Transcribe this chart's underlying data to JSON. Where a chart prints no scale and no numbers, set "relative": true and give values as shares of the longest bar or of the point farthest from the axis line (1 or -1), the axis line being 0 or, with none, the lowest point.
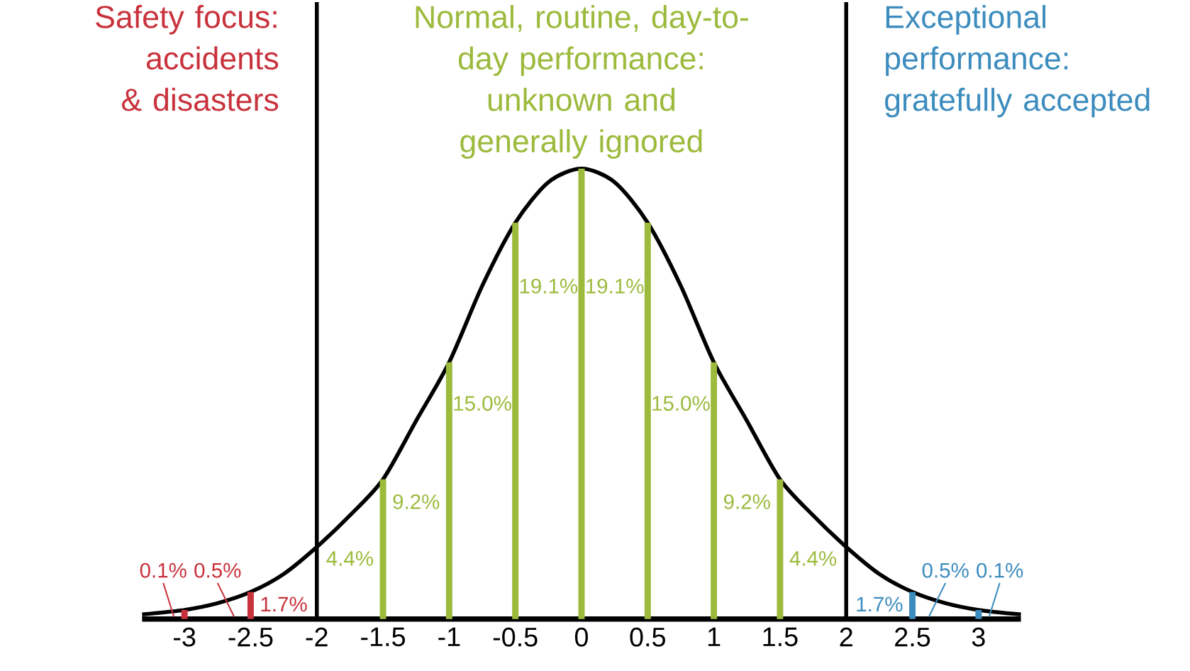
{
  "chart_data": {
    "type": "line",
    "relative": true,
    "grid": false,
    "marker": "none",
    "xlim": [
      -3.32,
      3.32
    ],
    "xticks": [
      -3,
      -2.5,
      -2,
      -1.5,
      -1,
      -0.5,
      0,
      0.5,
      1,
      1.5,
      2,
      2.5,
      3
    ],
    "series": [
      {
        "color": "#000000",
        "x": [
          -3.32,
          -3,
          -2.75,
          -2.5,
          -2.25,
          -2,
          -1.75,
          -1.5,
          -1.25,
          -1,
          -0.75,
          -0.5,
          -0.25,
          0,
          0.25,
          0.5,
          0.75,
          1,
          1.25,
          1.5,
          1.75,
          2,
          2.25,
          2.5,
          2.75,
          3,
          3.32
        ],
        "values": [
          0.01,
          0.02,
          0.035,
          0.06,
          0.1,
          0.16,
          0.23,
          0.31,
          0.44,
          0.57,
          0.74,
          0.88,
          0.97,
          1,
          0.97,
          0.88,
          0.74,
          0.57,
          0.44,
          0.31,
          0.23,
          0.16,
          0.1,
          0.06,
          0.035,
          0.02,
          0.01
        ]
      },
      {
        "type": "bar",
        "x": [
          -3,
          -2.5,
          -1.5,
          -1,
          -0.5,
          0,
          0.5,
          1,
          1.5,
          2.5,
          3
        ],
        "values": [
          0.02,
          0.06,
          0.31,
          0.57,
          0.88,
          1,
          0.88,
          0.57,
          0.31,
          0.06,
          0.02
        ],
        "colors": [
          "#c8323c",
          "#c8323c",
          "#9cba3c",
          "#9cba3c",
          "#9cba3c",
          "#9cba3c",
          "#9cba3c",
          "#9cba3c",
          "#9cba3c",
          "#3c8cbe",
          "#3c8cbe"
        ]
      }
    ],
    "ref_lines": [
      {
        "axis": "x",
        "value": -2,
        "color": "#000000"
      },
      {
        "axis": "x",
        "value": 2,
        "color": "#000000"
      }
    ],
    "annotations": [
      "Safety focus: accidents & disasters",
      "Normal, routine, day-to-day performance: unknown and generally ignored",
      "Exceptional performance: gratefully accepted",
      "0.1%",
      "0.5%",
      "1.7%",
      "4.4%",
      "9.2%",
      "15.0%",
      "19.1%",
      "19.1%",
      "15.0%",
      "9.2%",
      "4.4%",
      "1.7%",
      "0.5%",
      "0.1%"
    ]
  }
}
